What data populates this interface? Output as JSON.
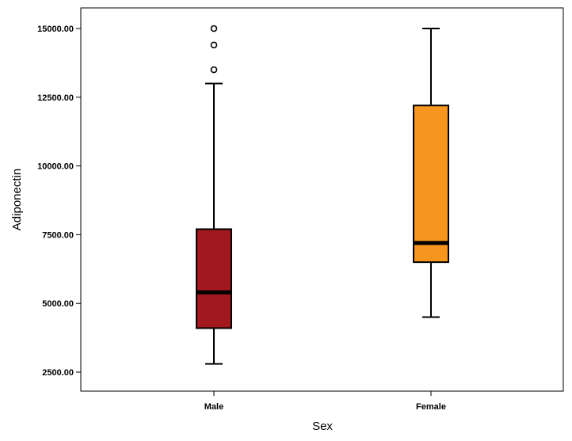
{
  "chart_data": {
    "type": "boxplot",
    "xlabel": "Sex",
    "ylabel": "Adiponectin",
    "ylim": [
      1800,
      15900
    ],
    "yticks": [
      2500,
      5000,
      7500,
      10000,
      12500,
      15000
    ],
    "ytick_labels": [
      "2500.00",
      "5000.00",
      "7500.00",
      "10000.00",
      "12500.00",
      "15000.00"
    ],
    "categories": [
      "Male",
      "Female"
    ],
    "boxes": [
      {
        "category": "Male",
        "min": 2800,
        "q1": 4100,
        "median": 5400,
        "q3": 7700,
        "max": 13000,
        "outliers": [
          13500,
          14400,
          15000
        ],
        "color": "#A3181F"
      },
      {
        "category": "Female",
        "min": 4500,
        "q1": 6500,
        "median": 7200,
        "q3": 12200,
        "max": 15000,
        "outliers": [],
        "color": "#F7961E"
      }
    ]
  }
}
